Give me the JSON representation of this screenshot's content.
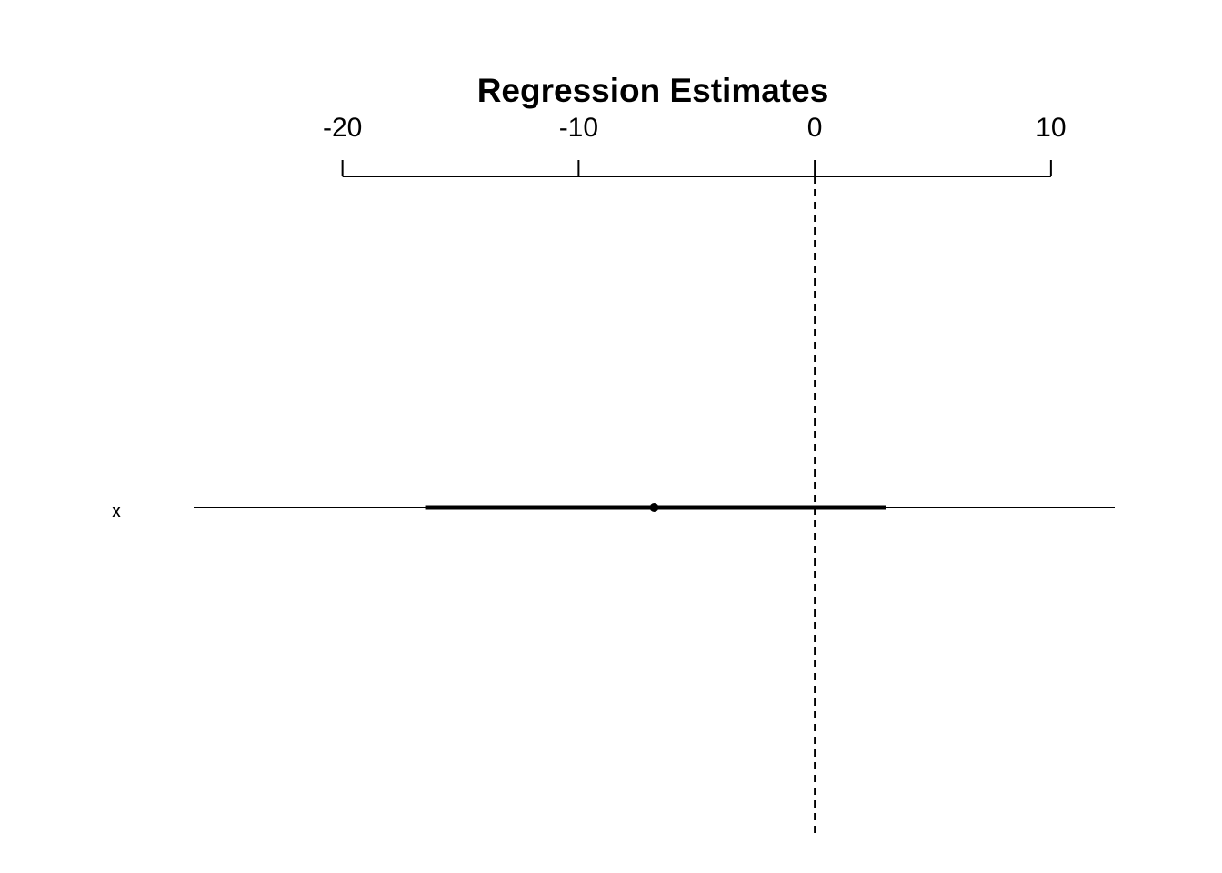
{
  "chart_data": {
    "type": "coefficient-plot",
    "title": "Regression Estimates",
    "xlim": [
      -26.3,
      12.7
    ],
    "axis_position": "top",
    "ticks": [
      -20,
      -10,
      0,
      10
    ],
    "tick_labels": [
      "-20",
      "-10",
      "0",
      "10"
    ],
    "reference_line": 0,
    "reference_line_style": "dashed",
    "grid": false,
    "coefficients": [
      {
        "label": "x",
        "estimate": -6.8,
        "ci_inner": [
          -16.5,
          3.0
        ],
        "ci_outer": [
          -26.3,
          12.7
        ]
      }
    ]
  }
}
